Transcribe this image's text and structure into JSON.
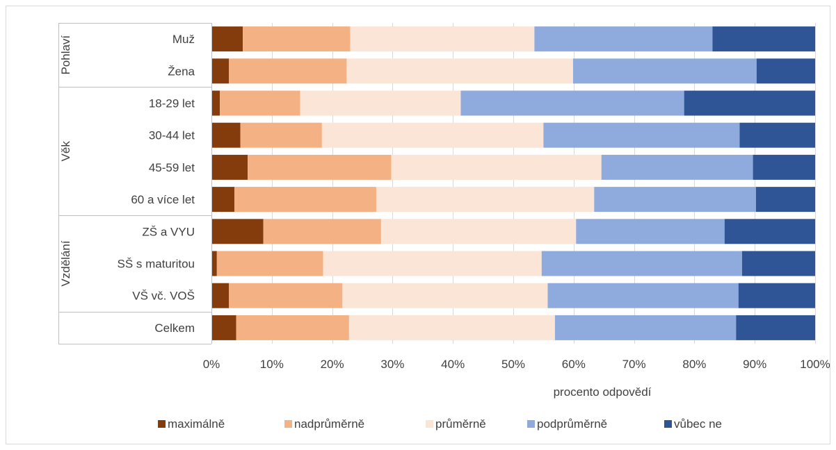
{
  "chart_data": {
    "type": "bar",
    "orientation": "horizontal",
    "stacked": "percent",
    "xlabel": "procento odpovědí",
    "xlim": [
      0,
      100
    ],
    "xticks": [
      "0%",
      "10%",
      "20%",
      "30%",
      "40%",
      "50%",
      "60%",
      "70%",
      "80%",
      "90%",
      "100%"
    ],
    "grid": "vertical",
    "legend_position": "bottom",
    "groups": [
      {
        "label": "Pohlaví",
        "categories": [
          "Muž",
          "Žena"
        ]
      },
      {
        "label": "Věk",
        "categories": [
          "18-29 let",
          "30-44 let",
          "45-59 let",
          "60 a více let"
        ]
      },
      {
        "label": "Vzdělání",
        "categories": [
          "ZŠ a VYU",
          "SŠ s maturitou",
          "VŠ vč. VOŠ"
        ]
      },
      {
        "label": "",
        "categories": [
          "Celkem"
        ]
      }
    ],
    "categories": [
      "Muž",
      "Žena",
      "18-29 let",
      "30-44 let",
      "45-59 let",
      "60 a více let",
      "ZŠ a VYU",
      "SŠ s maturitou",
      "VŠ vč. VOŠ",
      "Celkem"
    ],
    "series": [
      {
        "name": "maximálně",
        "color": "#843c0c",
        "values": [
          5.2,
          2.9,
          1.4,
          4.8,
          6.0,
          3.8,
          8.6,
          0.9,
          2.9,
          4.1
        ]
      },
      {
        "name": "nadprůměrně",
        "color": "#f4b183",
        "values": [
          17.8,
          19.5,
          13.3,
          13.5,
          23.8,
          23.5,
          19.5,
          17.6,
          18.8,
          18.7
        ]
      },
      {
        "name": "průměrně",
        "color": "#fbe5d6",
        "values": [
          30.5,
          37.5,
          26.6,
          36.7,
          34.8,
          36.1,
          32.3,
          36.2,
          34.0,
          34.1
        ]
      },
      {
        "name": "podprůměrně",
        "color": "#8faadc",
        "values": [
          29.5,
          30.4,
          37.0,
          32.5,
          25.1,
          26.8,
          24.6,
          33.2,
          31.6,
          30.0
        ]
      },
      {
        "name": "vůbec ne",
        "color": "#2f5597",
        "values": [
          17.0,
          9.7,
          21.7,
          12.5,
          10.3,
          9.8,
          15.0,
          12.1,
          12.7,
          13.1
        ]
      }
    ]
  }
}
